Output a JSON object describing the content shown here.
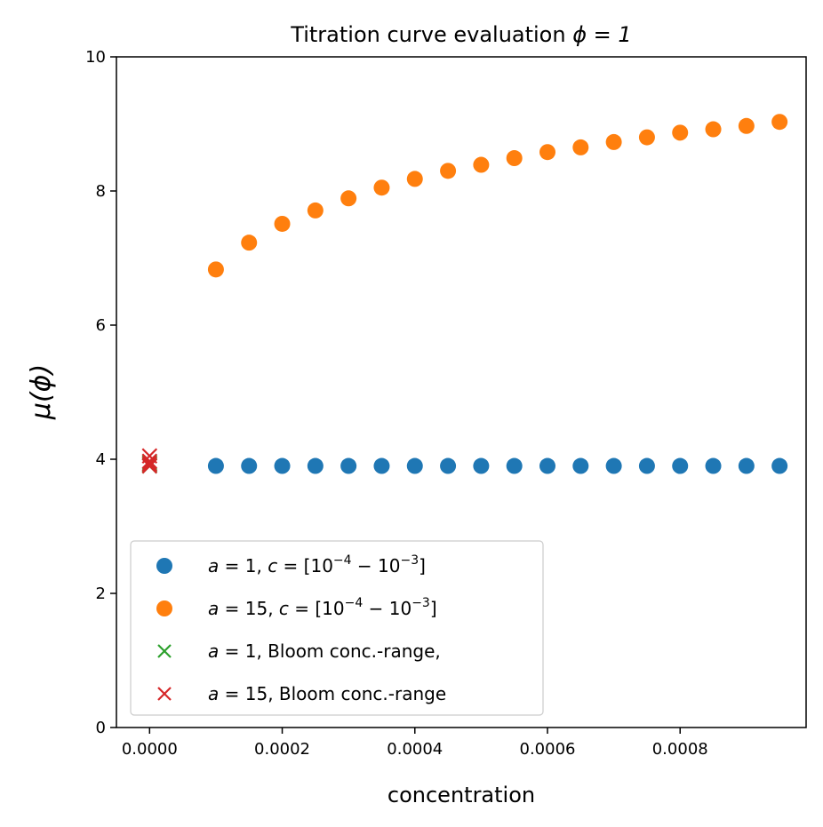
{
  "chart_data": {
    "type": "scatter",
    "title_prefix": "Titration curve evaluation ",
    "title_math": "ϕ = 1",
    "xlabel": "concentration",
    "ylabel": "μ(ϕ)",
    "xlim": [
      -5e-05,
      0.00099
    ],
    "ylim": [
      0,
      10
    ],
    "xticks": [
      0.0,
      0.0002,
      0.0004,
      0.0006,
      0.0008
    ],
    "xtick_labels": [
      "0.0000",
      "0.0002",
      "0.0004",
      "0.0006",
      "0.0008"
    ],
    "yticks": [
      0,
      2,
      4,
      6,
      8,
      10
    ],
    "ytick_labels": [
      "0",
      "2",
      "4",
      "6",
      "8",
      "10"
    ],
    "grid": false,
    "legend_position": "lower-left",
    "series": [
      {
        "name": "a = 1, c = [10⁻⁴ − 10⁻³]",
        "label_parts": {
          "a": "a",
          "a_val": " = 1, ",
          "c": "c",
          "c_val": " = [10",
          "e1": "−4",
          "mid": " − 10",
          "e2": "−3",
          "end": "]"
        },
        "marker": "circle",
        "color": "#1f77b4",
        "x": [
          0.0001,
          0.00015,
          0.0002,
          0.00025,
          0.0003,
          0.00035,
          0.0004,
          0.00045,
          0.0005,
          0.00055,
          0.0006,
          0.00065,
          0.0007,
          0.00075,
          0.0008,
          0.00085,
          0.0009,
          0.00095
        ],
        "y": [
          3.9,
          3.9,
          3.9,
          3.9,
          3.9,
          3.9,
          3.9,
          3.9,
          3.9,
          3.9,
          3.9,
          3.9,
          3.9,
          3.9,
          3.9,
          3.9,
          3.9,
          3.9
        ]
      },
      {
        "name": "a = 15, c = [10⁻⁴ − 10⁻³]",
        "label_parts": {
          "a": "a",
          "a_val": " = 15, ",
          "c": "c",
          "c_val": " = [10",
          "e1": "−4",
          "mid": " − 10",
          "e2": "−3",
          "end": "]"
        },
        "marker": "circle",
        "color": "#ff7f0e",
        "x": [
          0.0001,
          0.00015,
          0.0002,
          0.00025,
          0.0003,
          0.00035,
          0.0004,
          0.00045,
          0.0005,
          0.00055,
          0.0006,
          0.00065,
          0.0007,
          0.00075,
          0.0008,
          0.00085,
          0.0009,
          0.00095
        ],
        "y": [
          6.83,
          7.23,
          7.51,
          7.71,
          7.89,
          8.05,
          8.18,
          8.3,
          8.39,
          8.49,
          8.58,
          8.65,
          8.73,
          8.8,
          8.87,
          8.92,
          8.97,
          9.03
        ]
      },
      {
        "name": "a = 1, Bloom conc.-range,",
        "label_parts": {
          "a": "a",
          "a_val": " = 1, Bloom conc.-range,"
        },
        "marker": "x",
        "color": "#2ca02c",
        "x": [
          0.0,
          0.0,
          0.0
        ],
        "y": [
          3.9,
          3.92,
          3.95
        ]
      },
      {
        "name": "a = 15, Bloom conc.-range",
        "label_parts": {
          "a": "a",
          "a_val": " = 15, Bloom conc.-range"
        },
        "marker": "x",
        "color": "#d62728",
        "x": [
          0.0,
          0.0,
          0.0,
          0.0
        ],
        "y": [
          3.9,
          3.93,
          3.97,
          4.05
        ]
      }
    ]
  }
}
